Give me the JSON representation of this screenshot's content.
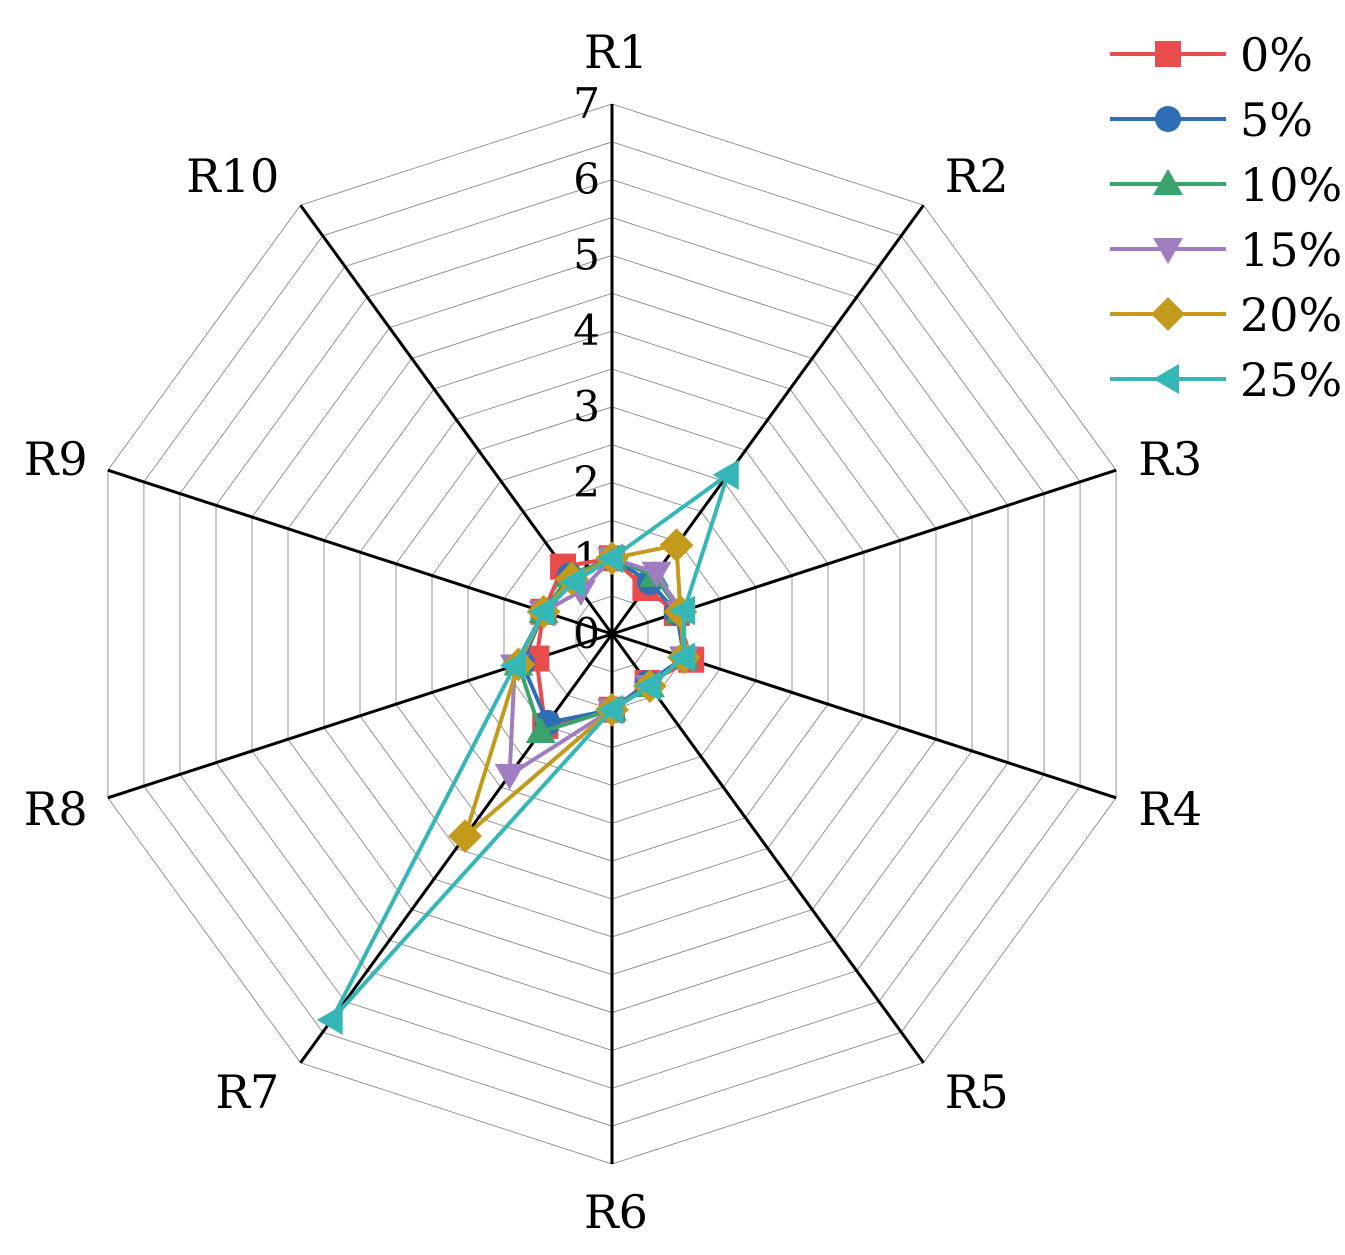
{
  "chart_data": {
    "type": "radar",
    "categories": [
      "R1",
      "R2",
      "R3",
      "R4",
      "R5",
      "R6",
      "R7",
      "R8",
      "R9",
      "R10"
    ],
    "rlim": [
      0,
      7
    ],
    "ticks": [
      "0",
      "1",
      "2",
      "3",
      "4",
      "5",
      "6",
      "7"
    ],
    "grid": true,
    "legend_position": "top-right",
    "series": [
      {
        "name": "0%",
        "color": "#e84c4c",
        "marker": "square",
        "values": [
          1.0,
          0.75,
          0.9,
          1.1,
          0.8,
          1.0,
          1.5,
          1.05,
          0.95,
          1.1
        ]
      },
      {
        "name": "5%",
        "color": "#2f6db5",
        "marker": "circle",
        "values": [
          1.0,
          0.85,
          0.9,
          1.0,
          0.8,
          1.0,
          1.45,
          1.25,
          0.95,
          0.95
        ]
      },
      {
        "name": "10%",
        "color": "#3aa36c",
        "marker": "triangle-up",
        "values": [
          1.0,
          0.95,
          0.95,
          1.0,
          0.85,
          1.0,
          1.6,
          1.3,
          0.95,
          0.95
        ]
      },
      {
        "name": "15%",
        "color": "#a07cc0",
        "marker": "triangle-down",
        "values": [
          1.0,
          1.0,
          0.95,
          1.0,
          0.85,
          1.0,
          2.3,
          1.35,
          0.95,
          0.7
        ]
      },
      {
        "name": "20%",
        "color": "#c49a1c",
        "marker": "diamond",
        "values": [
          1.0,
          1.45,
          0.95,
          1.0,
          0.85,
          1.0,
          3.3,
          1.3,
          0.95,
          0.9
        ]
      },
      {
        "name": "25%",
        "color": "#35b7b7",
        "marker": "triangle-left",
        "values": [
          1.0,
          2.6,
          1.0,
          1.0,
          0.85,
          1.0,
          6.3,
          1.35,
          0.95,
          0.85
        ]
      }
    ]
  }
}
